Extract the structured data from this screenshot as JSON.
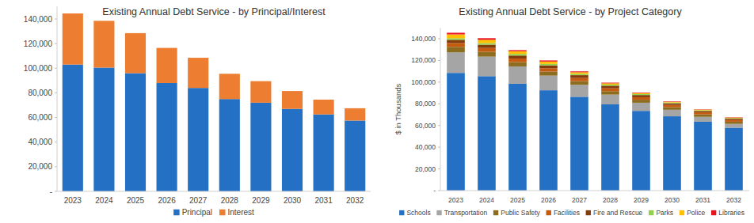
{
  "chart_data": [
    {
      "type": "bar",
      "title": "Existing Annual Debt Service - by Principal/Interest",
      "stacked": true,
      "grid": false,
      "legend": "bottom",
      "categories": [
        "2023",
        "2024",
        "2025",
        "2026",
        "2027",
        "2028",
        "2029",
        "2030",
        "2031",
        "2032"
      ],
      "series": [
        {
          "name": "Principal",
          "color": "#2470c4",
          "values": [
            103000,
            100500,
            96000,
            88000,
            84000,
            75000,
            72000,
            67000,
            62500,
            57500
          ]
        },
        {
          "name": "Interest",
          "color": "#ed7d31",
          "values": [
            41500,
            38000,
            32500,
            28500,
            24500,
            20500,
            17500,
            14500,
            12000,
            10000
          ]
        }
      ],
      "ylim": [
        0,
        150000
      ],
      "yticks": [
        {
          "value": 0,
          "label": "-"
        },
        {
          "value": 20000,
          "label": "20,000"
        },
        {
          "value": 40000,
          "label": "40,000"
        },
        {
          "value": 60000,
          "label": "60,000"
        },
        {
          "value": 80000,
          "label": "80,000"
        },
        {
          "value": 100000,
          "label": "100,000"
        },
        {
          "value": 120000,
          "label": "120,000"
        },
        {
          "value": 140000,
          "label": "140,000"
        }
      ]
    },
    {
      "type": "bar",
      "title": "Existing Annual Debt Service - by Project Category",
      "y_label": "$ in Thousands",
      "stacked": true,
      "grid": false,
      "legend": "bottom",
      "categories": [
        "2023",
        "2024",
        "2025",
        "2026",
        "2027",
        "2028",
        "2029",
        "2030",
        "2031",
        "2032"
      ],
      "series": [
        {
          "name": "Schools",
          "color": "#2470c4",
          "values": [
            108500,
            105500,
            98500,
            92500,
            86500,
            79500,
            73500,
            68500,
            63500,
            58000
          ]
        },
        {
          "name": "Transportation",
          "color": "#a5a5a5",
          "values": [
            19000,
            18000,
            16000,
            13500,
            11000,
            9000,
            7500,
            6000,
            4500,
            3500
          ]
        },
        {
          "name": "Public Safety",
          "color": "#8c6d1f",
          "values": [
            5000,
            4500,
            4000,
            3800,
            3500,
            3200,
            2800,
            2500,
            2300,
            2000
          ]
        },
        {
          "name": "Facilities",
          "color": "#c55a11",
          "values": [
            3500,
            3500,
            3200,
            3000,
            2800,
            2600,
            2300,
            2000,
            1800,
            1600
          ]
        },
        {
          "name": "Fire and Rescue",
          "color": "#843c0c",
          "values": [
            3000,
            3000,
            2800,
            2700,
            2600,
            2400,
            2000,
            1500,
            1300,
            1200
          ]
        },
        {
          "name": "Parks",
          "color": "#92d050",
          "values": [
            1500,
            1500,
            1500,
            1300,
            1200,
            1000,
            900,
            700,
            600,
            500
          ]
        },
        {
          "name": "Police",
          "color": "#ffc000",
          "values": [
            3500,
            3000,
            2500,
            2200,
            1500,
            1200,
            900,
            700,
            600,
            500
          ]
        },
        {
          "name": "Libraries",
          "color": "#e8101e",
          "values": [
            1500,
            1500,
            1000,
            1000,
            800,
            600,
            500,
            400,
            300,
            300
          ]
        }
      ],
      "ylim": [
        0,
        150000
      ],
      "yticks": [
        {
          "value": 0,
          "label": "-"
        },
        {
          "value": 20000,
          "label": "20,000"
        },
        {
          "value": 40000,
          "label": "40,000"
        },
        {
          "value": 60000,
          "label": "60,000"
        },
        {
          "value": 80000,
          "label": "80,000"
        },
        {
          "value": 100000,
          "label": "100,000"
        },
        {
          "value": 120000,
          "label": "120,000"
        },
        {
          "value": 140000,
          "label": "140,000"
        }
      ]
    }
  ]
}
